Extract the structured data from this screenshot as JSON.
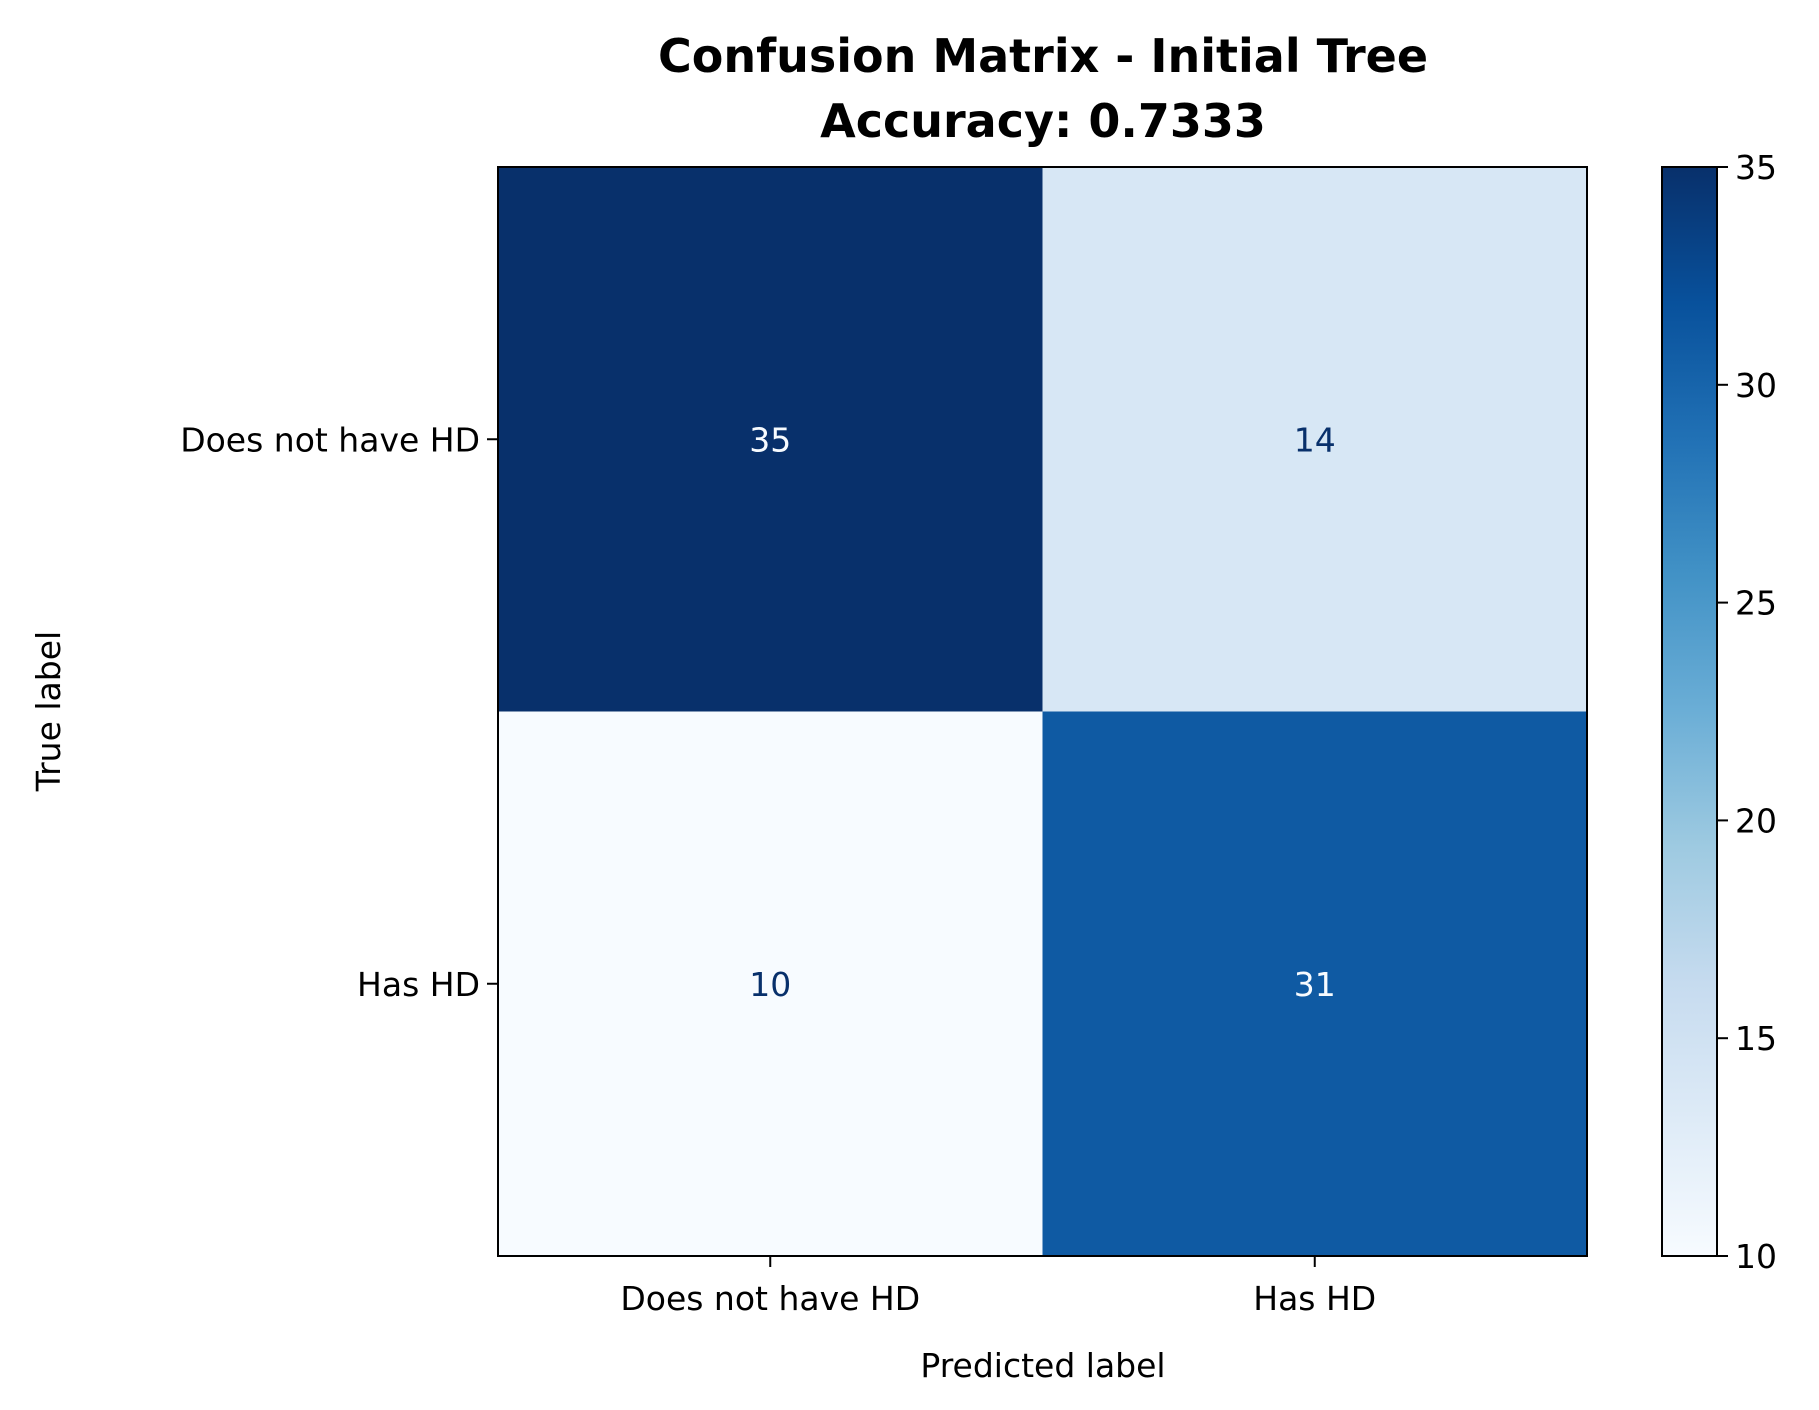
{
  "chart_data": {
    "type": "heatmap",
    "title": "Confusion Matrix - Initial Tree",
    "subtitle": "Accuracy: 0.7333",
    "xlabel": "Predicted label",
    "ylabel": "True label",
    "x_categories": [
      "Does not have HD",
      "Has HD"
    ],
    "y_categories": [
      "Does not have HD",
      "Has HD"
    ],
    "matrix": [
      [
        35,
        14
      ],
      [
        10,
        31
      ]
    ],
    "colormap": "Blues",
    "colorbar": {
      "range": [
        10,
        35
      ],
      "ticks": [
        10,
        15,
        20,
        25,
        30,
        35
      ]
    },
    "grid": false
  }
}
